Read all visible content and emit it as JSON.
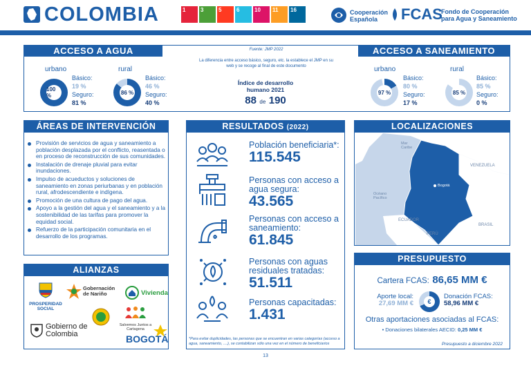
{
  "header": {
    "country": "COLOMBIA",
    "aecid_line1": "Cooperación",
    "aecid_line2": "Española",
    "fcas": "FCAS",
    "fcas_line1": "Fondo de Cooperación",
    "fcas_line2": "para Agua y Saneamiento",
    "ods_icons": [
      "1",
      "3",
      "5",
      "6",
      "10",
      "11",
      "16"
    ],
    "ods_colors": [
      "#e5243b",
      "#4c9f38",
      "#ff3a21",
      "#26bde2",
      "#dd1367",
      "#fd9d24",
      "#00689d"
    ]
  },
  "agua": {
    "title": "ACCESO A AGUA",
    "urbano_label": "urbano",
    "urbano_pct": "100 %",
    "urbano_basico_label": "Básico:",
    "urbano_basico": "19 %",
    "urbano_seguro_label": "Seguro:",
    "urbano_seguro": "81 %",
    "rural_label": "rural",
    "rural_pct": "86 %",
    "rural_basico_label": "Básico:",
    "rural_basico": "46 %",
    "rural_seguro_label": "Seguro:",
    "rural_seguro": "40 %"
  },
  "center": {
    "fuente": "Fuente: JMP 2022",
    "nota": "La diferencia entre acceso básico, seguro, etc. la establece el JMP en su web y se recoge al final de este documento",
    "idh_label": "Índice de desarrollo humano 2021",
    "idh_rank": "88",
    "idh_de": "de",
    "idh_total": "190"
  },
  "saneamiento": {
    "title": "ACCESO A SANEAMIENTO",
    "urbano_label": "urbano",
    "urbano_pct": "97 %",
    "urbano_basico_label": "Básico:",
    "urbano_basico": "80 %",
    "urbano_seguro_label": "Seguro:",
    "urbano_seguro": "17 %",
    "rural_label": "rural",
    "rural_pct": "85 %",
    "rural_basico_label": "Básico:",
    "rural_basico": "85 %",
    "rural_seguro_label": "Seguro:",
    "rural_seguro": "0 %"
  },
  "areas": {
    "title": "ÁREAS DE INTERVENCIÓN",
    "items": [
      "Provisión de servicios de agua y saneamiento a población desplazada por el conflicto, reasentada o en proceso de reconstrucción de sus comunidades.",
      "Instalación de drenaje pluvial para evitar inundaciones.",
      "Impulso de acueductos y soluciones de saneamiento en zonas periurbanas y en población rural, afrodescendiente e indígena.",
      "Promoción de una cultura de pago del agua.",
      "Apoyo a la gestión del agua y el saneamiento y a la sostenibilidad de las tarifas para promover la equidad social.",
      "Refuerzo de la participación comunitaria en el desarrollo de los programas."
    ]
  },
  "alianzas": {
    "title": "ALIANZAS",
    "logos": [
      "PROSPERIDAD SOCIAL",
      "Gobernación de Nariño",
      "Vivienda",
      "Gobierno de Colombia",
      "Salvemos Juntos a Cartagena",
      "BOGOTÁ"
    ]
  },
  "resultados": {
    "title": "RESULTADOS",
    "year": "(2022)",
    "items": [
      {
        "label": "Población beneficiaria*:",
        "value": "115.545"
      },
      {
        "label": "Personas con acceso a agua segura:",
        "value": "43.565"
      },
      {
        "label": "Personas con acceso a saneamiento:",
        "value": "61.845"
      },
      {
        "label": "Personas con aguas residuales tratadas:",
        "value": "51.511"
      },
      {
        "label": "Personas capacitadas:",
        "value": "1.431"
      }
    ],
    "footnote": "*Para evitar duplicidades, las personas que se encuentran en varias categorías (acceso a agua, saneamiento, ....), se contabilizan sólo una vez en el número de beneficiarios"
  },
  "localizaciones": {
    "title": "LOCALIZACIONES",
    "labels": {
      "mar_caribe": "Mar Caribe",
      "venezuela": "VENEZUELA",
      "oceano_pacifico": "Océano Pacífico",
      "bogota": "Bogotá",
      "ecuador": "ECUADOR",
      "peru": "PERÚ",
      "brasil": "BRASIL"
    }
  },
  "presupuesto": {
    "title": "PRESUPUESTO",
    "cartera_label": "Cartera FCAS:",
    "cartera_value": "86,65 MM €",
    "aporte_label": "Aporte local:",
    "aporte_value": "27,69 MM €",
    "donacion_label": "Donación FCAS:",
    "donacion_value": "58,96 MM €",
    "otras_label": "Otras aportaciones asociadas al FCAS:",
    "bilateral_label": "• Donaciones bilaterales AECID:",
    "bilateral_value": "0,25 MM €",
    "fecha": "Presupuesto a diciembre 2022"
  },
  "page_number": "13"
}
